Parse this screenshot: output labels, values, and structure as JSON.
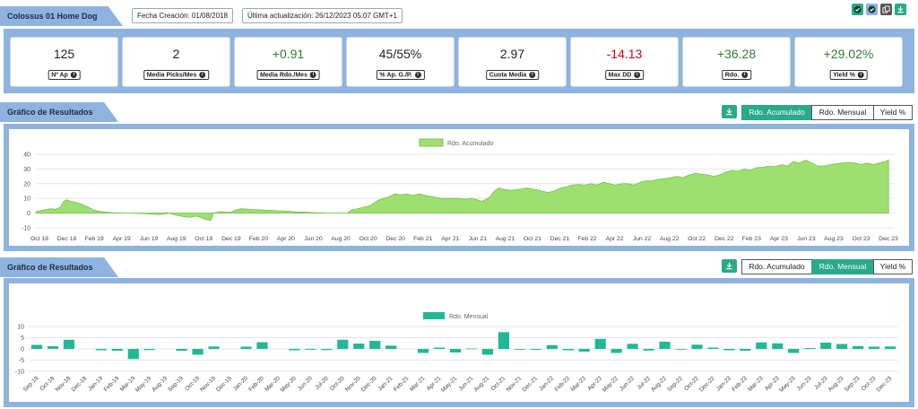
{
  "header": {
    "title": "Colossus 01 Home Dog",
    "created_label": "Fecha Creación: 01/08/2018",
    "updated_label": "Última actualización: 26/12/2023 05:07 GMT+1"
  },
  "colors": {
    "panel": "#8fb3e0",
    "accent": "#2aaa8a",
    "area": "#9de06f",
    "bar": "#22b896",
    "negative": "#d0021b",
    "positive": "#2e7d32"
  },
  "stats": [
    {
      "value": "125",
      "label": "Nº Ap",
      "color": "#222222"
    },
    {
      "value": "2",
      "label": "Media Picks/Mes",
      "color": "#222222"
    },
    {
      "value": "+0.91",
      "label": "Media Rdo./Mes",
      "color": "#2e7d32"
    },
    {
      "value": "45/55%",
      "label": "% Ap. G./P.",
      "color": "#222222"
    },
    {
      "value": "2.97",
      "label": "Cuota Media",
      "color": "#222222"
    },
    {
      "value": "-14.13",
      "label": "Max DD",
      "color": "#d0021b"
    },
    {
      "value": "+36.28",
      "label": "Rdo.",
      "color": "#2e7d32"
    },
    {
      "value": "+29.02%",
      "label": "Yield %",
      "color": "#2e7d32"
    }
  ],
  "section1": {
    "title": "Gráfico de Resultados",
    "tabs": [
      "Rdo. Acumulado",
      "Rdo. Mensual",
      "Yield %"
    ],
    "active_tab": 0
  },
  "section2": {
    "title": "Gráfico de Resultados",
    "tabs": [
      "Rdo. Acumulado",
      "Rdo. Mensual",
      "Yield %"
    ],
    "active_tab": 1
  },
  "chart_data": [
    {
      "type": "area",
      "series": [
        {
          "name": "Rdo. Acumulado"
        }
      ],
      "legend": "top-center",
      "ylim": [
        -10,
        40
      ],
      "yticks": [
        -10,
        0,
        10,
        20,
        30,
        40
      ],
      "x_tick_labels": [
        "Oct 18",
        "Dec 18",
        "Feb 19",
        "Apr 19",
        "Jun 19",
        "Aug 19",
        "Oct 19",
        "Dec 19",
        "Feb 20",
        "Apr 20",
        "Jun 20",
        "Aug 20",
        "Oct 20",
        "Dec 20",
        "Feb 21",
        "Apr 21",
        "Jun 21",
        "Aug 21",
        "Oct 21",
        "Dec 21",
        "Feb 22",
        "Apr 22",
        "Jun 22",
        "Aug 22",
        "Oct 22",
        "Dec 22",
        "Feb 23",
        "Apr 23",
        "Jun 23",
        "Aug 23",
        "Oct 23",
        "Dec 23"
      ],
      "points": [
        [
          0,
          1
        ],
        [
          0.5,
          2
        ],
        [
          1,
          3
        ],
        [
          1.3,
          2.5
        ],
        [
          1.6,
          4
        ],
        [
          1.8,
          8
        ],
        [
          2.0,
          9
        ],
        [
          2.3,
          8
        ],
        [
          2.7,
          7
        ],
        [
          3.0,
          6
        ],
        [
          3.4,
          4
        ],
        [
          3.8,
          2
        ],
        [
          4.3,
          1
        ],
        [
          5,
          0.3
        ],
        [
          6,
          0
        ],
        [
          7,
          -0.3
        ],
        [
          8,
          -1
        ],
        [
          8.6,
          -0.3
        ],
        [
          8.5,
          0.5
        ],
        [
          9.2,
          -1.5
        ],
        [
          10,
          -3
        ],
        [
          10.5,
          -2
        ],
        [
          11,
          -4
        ],
        [
          11.4,
          -5
        ],
        [
          11.6,
          0
        ],
        [
          12,
          1
        ],
        [
          12.7,
          0.5
        ],
        [
          13,
          2
        ],
        [
          13.4,
          3
        ],
        [
          14,
          2.5
        ],
        [
          15,
          2
        ],
        [
          16,
          1.5
        ],
        [
          17,
          0.8
        ],
        [
          18,
          0.4
        ],
        [
          19,
          0
        ],
        [
          20.3,
          0
        ],
        [
          20.6,
          2
        ],
        [
          21,
          3
        ],
        [
          21.4,
          4
        ],
        [
          21.8,
          5
        ],
        [
          22.2,
          8
        ],
        [
          22.6,
          10
        ],
        [
          23,
          11
        ],
        [
          23.4,
          13
        ],
        [
          23.8,
          12.5
        ],
        [
          24.2,
          13
        ],
        [
          24.6,
          12
        ],
        [
          25,
          13
        ],
        [
          25.6,
          11.5
        ],
        [
          26,
          11
        ],
        [
          26.4,
          10
        ],
        [
          27,
          10
        ],
        [
          27.6,
          10
        ],
        [
          28,
          9.5
        ],
        [
          28.4,
          10
        ],
        [
          28.8,
          9
        ],
        [
          29.1,
          8
        ],
        [
          29.3,
          9
        ],
        [
          29.6,
          11
        ],
        [
          29.9,
          15
        ],
        [
          30.2,
          17
        ],
        [
          30.6,
          16
        ],
        [
          31,
          15.5
        ],
        [
          31.4,
          16
        ],
        [
          32,
          17
        ],
        [
          32.6,
          16
        ],
        [
          33,
          15
        ],
        [
          33.4,
          14
        ],
        [
          33.8,
          15
        ],
        [
          34.2,
          17
        ],
        [
          34.6,
          18
        ],
        [
          35,
          19
        ],
        [
          35.4,
          19.5
        ],
        [
          35.8,
          19
        ],
        [
          36.2,
          20
        ],
        [
          36.6,
          19
        ],
        [
          37,
          21
        ],
        [
          37.4,
          20
        ],
        [
          37.8,
          19
        ],
        [
          38.2,
          20
        ],
        [
          38.6,
          20
        ],
        [
          39,
          19
        ],
        [
          39.4,
          21
        ],
        [
          39.8,
          22
        ],
        [
          40.2,
          22
        ],
        [
          40.6,
          23
        ],
        [
          41,
          23.5
        ],
        [
          41.4,
          24
        ],
        [
          41.8,
          25
        ],
        [
          42.2,
          24
        ],
        [
          42.6,
          26
        ],
        [
          43,
          27
        ],
        [
          43.4,
          26.5
        ],
        [
          43.8,
          26
        ],
        [
          44.2,
          25
        ],
        [
          44.6,
          26
        ],
        [
          45,
          28
        ],
        [
          45.4,
          29
        ],
        [
          45.8,
          28.5
        ],
        [
          46.2,
          30
        ],
        [
          46.6,
          29
        ],
        [
          47,
          31
        ],
        [
          47.4,
          31
        ],
        [
          47.8,
          32
        ],
        [
          48.2,
          31.5
        ],
        [
          48.6,
          33
        ],
        [
          49,
          32
        ],
        [
          49.4,
          35
        ],
        [
          49.8,
          34
        ],
        [
          50.2,
          36
        ],
        [
          50.6,
          34
        ],
        [
          51,
          32
        ],
        [
          51.4,
          32
        ],
        [
          51.8,
          33
        ],
        [
          52.2,
          33.5
        ],
        [
          52.6,
          34
        ],
        [
          53,
          34.5
        ],
        [
          53.4,
          34
        ],
        [
          53.8,
          33
        ],
        [
          54.2,
          34
        ],
        [
          54.6,
          33
        ],
        [
          55,
          34
        ],
        [
          55.4,
          35
        ],
        [
          55.6,
          36.3
        ]
      ]
    },
    {
      "type": "bar",
      "series": [
        {
          "name": "Rdo. Mensual"
        }
      ],
      "legend": "top-center",
      "ylim": [
        -10,
        10
      ],
      "yticks": [
        -10,
        -5,
        0,
        5,
        10
      ],
      "categories": [
        "Sep-18",
        "Oct-18",
        "Nov-18",
        "Dec-18",
        "Jan-19",
        "Feb-19",
        "Mar-19",
        "May-19",
        "Aug-19",
        "Sep-19",
        "Oct-19",
        "Nov-19",
        "Dec-19",
        "Jan-20",
        "Feb-20",
        "Mar-20",
        "May-20",
        "Jun-20",
        "Jul-20",
        "Oct-20",
        "Nov-20",
        "Dec-20",
        "Jan-21",
        "Feb-21",
        "Mar-21",
        "Apr-21",
        "May-21",
        "Jun-21",
        "Aug-21",
        "Oct-21",
        "Nov-21",
        "Dec-21",
        "Jan-22",
        "Feb-22",
        "Mar-22",
        "Apr-22",
        "May-22",
        "Jun-22",
        "Jul-22",
        "Aug-22",
        "Sep-22",
        "Oct-22",
        "Dec-22",
        "Jan-23",
        "Feb-23",
        "Mar-23",
        "Apr-23",
        "May-23",
        "Jun-23",
        "Jul-23",
        "Aug-23",
        "Sep-23",
        "Oct-23",
        "Dec-23"
      ],
      "values": [
        1.8,
        1.2,
        4.1,
        0,
        -0.6,
        -0.8,
        -4.5,
        -0.5,
        0,
        -0.8,
        -2.6,
        1.1,
        0,
        1,
        3,
        0,
        -0.6,
        -0.4,
        -0.5,
        4.1,
        2.4,
        3.6,
        1.5,
        0,
        -1.8,
        0.6,
        -1.6,
        0.2,
        -2.6,
        7.5,
        -0.3,
        -0.4,
        1.7,
        -0.6,
        -1.2,
        4.5,
        -1.8,
        2.3,
        -0.7,
        3.2,
        -0.3,
        1.9,
        0.6,
        -0.6,
        -0.8,
        2.9,
        2.5,
        -1.8,
        0.4,
        2.8,
        2.2,
        1.3,
        1,
        1.1
      ]
    }
  ]
}
